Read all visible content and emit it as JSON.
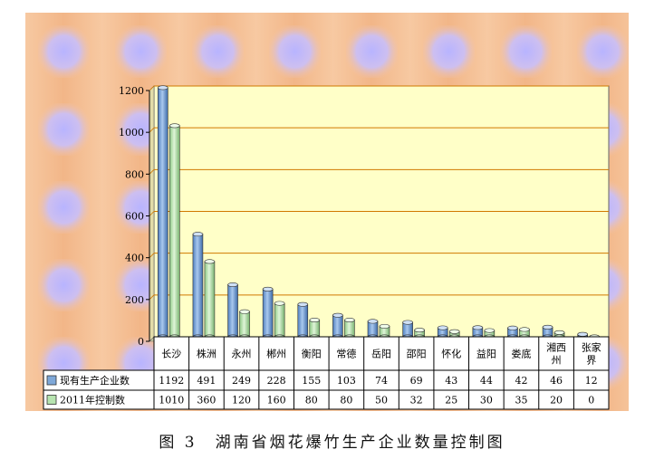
{
  "caption": "图 3　湖南省烟花爆竹生产企业数量控制图",
  "chart_data": {
    "type": "bar",
    "categories": [
      "长沙",
      "株洲",
      "永州",
      "郴州",
      "衡阳",
      "常德",
      "岳阳",
      "邵阳",
      "怀化",
      "益阳",
      "娄底",
      "湘西州",
      "张家界"
    ],
    "category_display": [
      [
        "长沙"
      ],
      [
        "株洲"
      ],
      [
        "永州"
      ],
      [
        "郴州"
      ],
      [
        "衡阳"
      ],
      [
        "常德"
      ],
      [
        "岳阳"
      ],
      [
        "邵阳"
      ],
      [
        "怀化"
      ],
      [
        "益阳"
      ],
      [
        "娄底"
      ],
      [
        "湘西",
        "州"
      ],
      [
        "张家",
        "界"
      ]
    ],
    "series": [
      {
        "name": "现有生产企业数",
        "values": [
          1192,
          491,
          249,
          228,
          155,
          103,
          74,
          69,
          43,
          44,
          42,
          46,
          12
        ],
        "color": "#7fa8d8"
      },
      {
        "name": "2011年控制数",
        "values": [
          1010,
          360,
          120,
          160,
          80,
          80,
          50,
          32,
          25,
          30,
          35,
          20,
          0
        ],
        "color": "#b7e4b0"
      }
    ],
    "yticks": [
      0,
      200,
      400,
      600,
      800,
      1000,
      1200
    ],
    "ylim": [
      0,
      1200
    ],
    "grid": true,
    "legend": "data-table",
    "plot_background": "#ffffc8",
    "gridline_color": "#d07800"
  }
}
